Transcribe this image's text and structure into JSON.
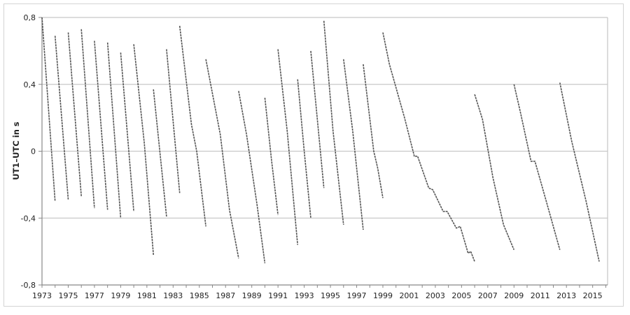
{
  "chart_data": {
    "type": "line",
    "title": "",
    "xlabel": "",
    "ylabel": "UT1–UTC in s",
    "xlim": [
      1973,
      2016.3
    ],
    "ylim": [
      -0.8,
      0.8
    ],
    "yticks": [
      0.8,
      0.4,
      0,
      -0.4,
      -0.8
    ],
    "ytick_labels": [
      "0,8",
      "0,4",
      "0",
      "-0,4",
      "-0,8"
    ],
    "xtick_labels": [
      "1973",
      "1975",
      "1977",
      "1979",
      "1981",
      "1983",
      "1985",
      "1987",
      "1989",
      "1991",
      "1993",
      "1995",
      "1997",
      "1999",
      "2001",
      "2003",
      "2005",
      "2007",
      "2009",
      "2011",
      "2013",
      "2015"
    ],
    "grid": "horizontal",
    "line_color": "#555555",
    "grid_color": "#c8c8c8",
    "segments": [
      [
        [
          1973.0,
          0.8
        ],
        [
          1974.0,
          -0.3
        ]
      ],
      [
        [
          1974.0,
          0.69
        ],
        [
          1975.0,
          -0.29
        ]
      ],
      [
        [
          1975.0,
          0.71
        ],
        [
          1976.0,
          -0.27
        ]
      ],
      [
        [
          1976.0,
          0.73
        ],
        [
          1977.0,
          -0.34
        ]
      ],
      [
        [
          1977.0,
          0.66
        ],
        [
          1978.0,
          -0.35
        ]
      ],
      [
        [
          1978.0,
          0.65
        ],
        [
          1979.0,
          -0.4
        ]
      ],
      [
        [
          1979.0,
          0.59
        ],
        [
          1980.0,
          -0.36
        ]
      ],
      [
        [
          1980.0,
          0.64
        ],
        [
          1980.8,
          0.05
        ],
        [
          1981.5,
          -0.62
        ]
      ],
      [
        [
          1981.5,
          0.37
        ],
        [
          1982.5,
          -0.39
        ]
      ],
      [
        [
          1982.5,
          0.61
        ],
        [
          1983.5,
          -0.25
        ]
      ],
      [
        [
          1983.5,
          0.75
        ],
        [
          1984.4,
          0.16
        ],
        [
          1984.8,
          0.0
        ],
        [
          1985.5,
          -0.45
        ]
      ],
      [
        [
          1985.5,
          0.55
        ],
        [
          1986.6,
          0.1
        ],
        [
          1987.3,
          -0.35
        ],
        [
          1988.0,
          -0.64
        ]
      ],
      [
        [
          1988.0,
          0.36
        ],
        [
          1988.6,
          0.1
        ],
        [
          1989.4,
          -0.32
        ],
        [
          1990.0,
          -0.67
        ]
      ],
      [
        [
          1990.0,
          0.32
        ],
        [
          1990.5,
          -0.05
        ],
        [
          1991.0,
          -0.38
        ]
      ],
      [
        [
          1991.0,
          0.61
        ],
        [
          1991.7,
          0.12
        ],
        [
          1992.5,
          -0.56
        ]
      ],
      [
        [
          1992.5,
          0.43
        ],
        [
          1993.0,
          0.0
        ],
        [
          1993.5,
          -0.4
        ]
      ],
      [
        [
          1993.5,
          0.6
        ],
        [
          1994.5,
          -0.22
        ]
      ],
      [
        [
          1994.5,
          0.78
        ],
        [
          1995.2,
          0.12
        ],
        [
          1996.0,
          -0.44
        ]
      ],
      [
        [
          1996.0,
          0.55
        ],
        [
          1996.7,
          0.12
        ],
        [
          1997.5,
          -0.47
        ]
      ],
      [
        [
          1997.5,
          0.52
        ],
        [
          1998.3,
          0.0
        ],
        [
          1998.6,
          -0.1
        ],
        [
          1999.0,
          -0.28
        ]
      ],
      [
        [
          1999.0,
          0.71
        ],
        [
          1999.5,
          0.52
        ],
        [
          2000.65,
          0.2
        ],
        [
          2001.4,
          -0.03
        ],
        [
          2001.65,
          -0.03
        ],
        [
          2002.5,
          -0.22
        ],
        [
          2002.8,
          -0.23
        ],
        [
          2003.6,
          -0.36
        ],
        [
          2003.9,
          -0.36
        ],
        [
          2004.6,
          -0.46
        ],
        [
          2004.9,
          -0.45
        ],
        [
          2005.5,
          -0.61
        ],
        [
          2005.7,
          -0.6
        ],
        [
          2006.0,
          -0.66
        ]
      ],
      [
        [
          2006.0,
          0.34
        ],
        [
          2006.6,
          0.19
        ],
        [
          2007.4,
          -0.16
        ],
        [
          2008.2,
          -0.44
        ],
        [
          2009.0,
          -0.59
        ]
      ],
      [
        [
          2009.0,
          0.4
        ],
        [
          2009.5,
          0.23
        ],
        [
          2010.3,
          -0.06
        ],
        [
          2010.6,
          -0.06
        ],
        [
          2011.5,
          -0.31
        ],
        [
          2012.5,
          -0.59
        ]
      ],
      [
        [
          2012.5,
          0.41
        ],
        [
          2013.4,
          0.06
        ],
        [
          2014.5,
          -0.3
        ],
        [
          2015.5,
          -0.66
        ]
      ]
    ]
  }
}
